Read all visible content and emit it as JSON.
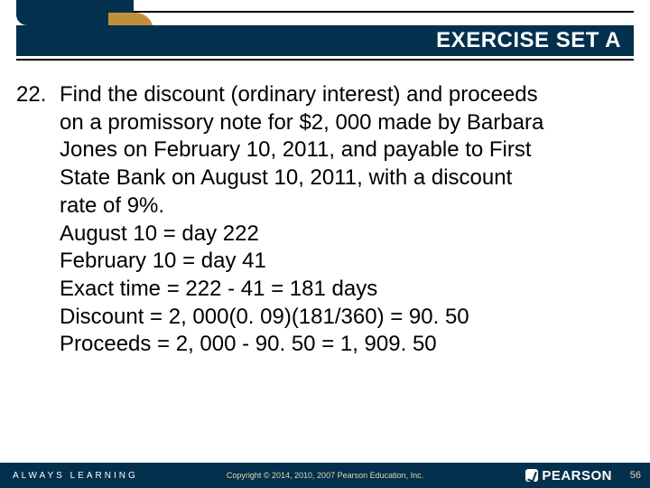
{
  "header": {
    "title": "EXERCISE SET A",
    "title_color": "#ffffff",
    "bar_color": "#02304d",
    "accent_color": "#c18f3a",
    "rule_color": "#000000"
  },
  "problem": {
    "number": "22.",
    "lines": [
      "Find the discount (ordinary interest) and proceeds",
      "on a promissory note for $2, 000 made by Barbara",
      "Jones on February 10, 2011, and payable to First",
      "State Bank on August 10, 2011, with a discount",
      "rate of 9%.",
      "August 10 = day 222",
      "February 10 = day 41",
      "Exact time = 222 - 41 = 181 days",
      "Discount = 2, 000(0. 09)(181/360) = 90. 50",
      "Proceeds = 2, 000 - 90. 50 = 1, 909. 50"
    ],
    "font_size_pt": 18,
    "text_color": "#000000"
  },
  "footer": {
    "left_text": "ALWAYS LEARNING",
    "copyright": "Copyright © 2014, 2010, 2007 Pearson Education, Inc.",
    "brand": "PEARSON",
    "page_number": "56",
    "bg_color": "#02304d",
    "text_color": "#e8d8a8"
  }
}
